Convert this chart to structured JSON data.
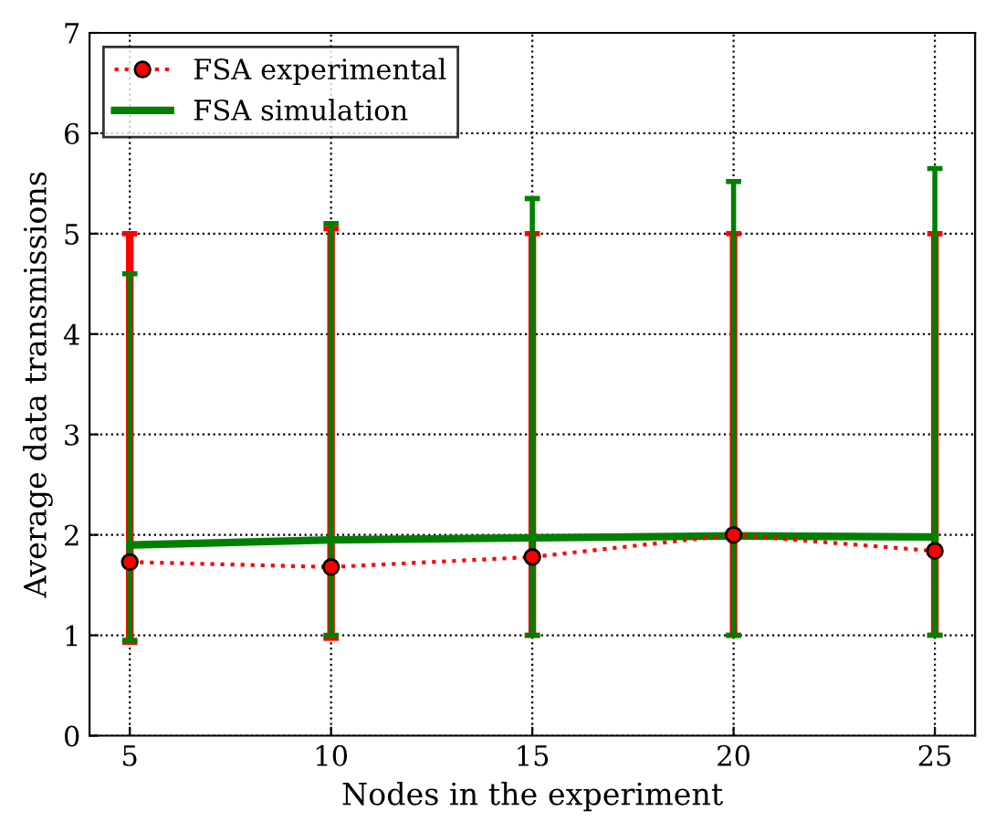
{
  "chart_data": {
    "type": "line",
    "xlabel": "Nodes in the experiment",
    "ylabel": "Average data transmissions",
    "x": [
      5,
      10,
      15,
      20,
      25
    ],
    "xlim": [
      4,
      26
    ],
    "ylim": [
      0,
      7
    ],
    "xticks": [
      5,
      10,
      15,
      20,
      25
    ],
    "yticks": [
      0,
      1,
      2,
      3,
      4,
      5,
      6,
      7
    ],
    "grid": true,
    "legend": "top left",
    "series": [
      {
        "name": "FSA experimental",
        "color": "#ff0000",
        "values": [
          1.73,
          1.68,
          1.78,
          2.0,
          1.84
        ],
        "errors": [
          [
            0.93,
            5.0
          ],
          [
            0.97,
            5.05
          ],
          [
            1.0,
            5.0
          ],
          [
            1.0,
            5.0
          ],
          [
            1.0,
            5.0
          ]
        ],
        "marker": "circle",
        "line_style": "dotted"
      },
      {
        "name": "FSA simulation",
        "color": "#008000",
        "values": [
          1.9,
          1.95,
          1.97,
          1.99,
          1.98
        ],
        "errors": [
          [
            0.95,
            4.6
          ],
          [
            1.0,
            5.1
          ],
          [
            1.0,
            5.35
          ],
          [
            1.0,
            5.52
          ],
          [
            1.0,
            5.65
          ]
        ],
        "marker": "none",
        "line_style": "solid"
      }
    ]
  }
}
